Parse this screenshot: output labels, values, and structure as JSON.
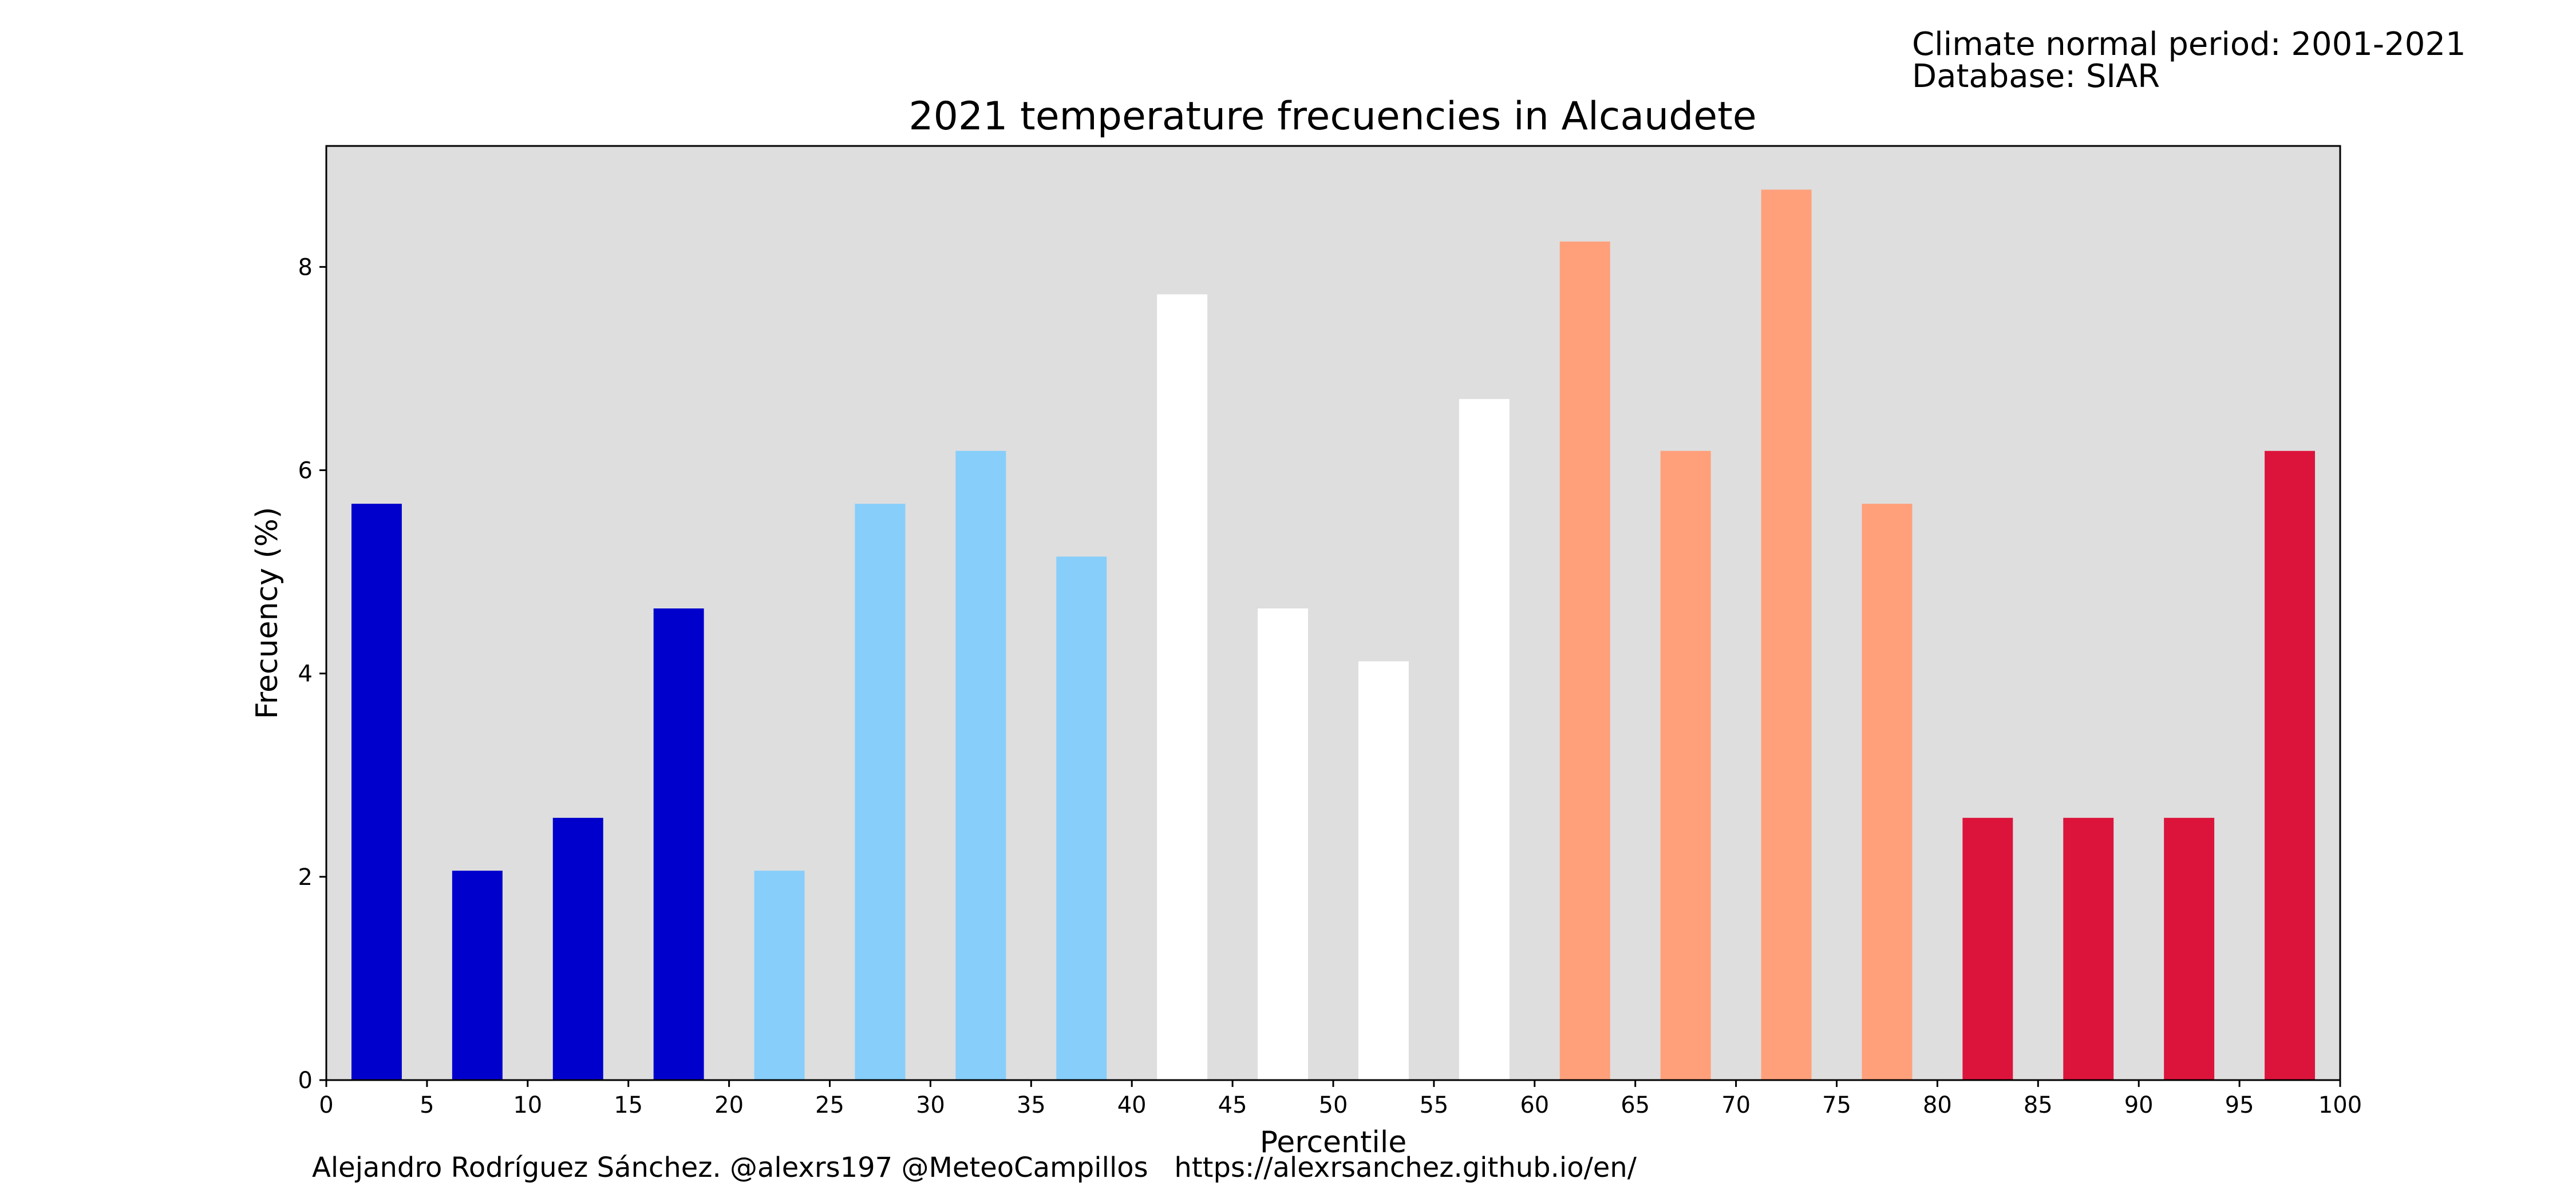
{
  "header": {
    "period_line": "Climate normal period: 2001-2021",
    "database_line": "Database: SIAR"
  },
  "footer": {
    "credit": "Alejandro Rodríguez Sánchez. @alexrs197 @MeteoCampillos   https://alexrsanchez.github.io/en/"
  },
  "chart_data": {
    "type": "bar",
    "title": "2021 temperature frecuencies in Alcaudete",
    "xlabel": "Percentile",
    "ylabel": "Frecuency (%)",
    "x": [
      2.5,
      7.5,
      12.5,
      17.5,
      22.5,
      27.5,
      32.5,
      37.5,
      42.5,
      47.5,
      52.5,
      57.5,
      62.5,
      67.5,
      72.5,
      77.5,
      82.5,
      87.5,
      92.5,
      97.5
    ],
    "values": [
      5.67,
      2.06,
      2.58,
      4.64,
      2.06,
      5.67,
      6.19,
      5.15,
      7.73,
      4.64,
      4.12,
      6.7,
      8.25,
      6.19,
      8.76,
      5.67,
      2.58,
      2.58,
      2.58,
      6.19
    ],
    "colors": [
      "#0000cd",
      "#0000cd",
      "#0000cd",
      "#0000cd",
      "#87cefa",
      "#87cefa",
      "#87cefa",
      "#87cefa",
      "#ffffff",
      "#ffffff",
      "#ffffff",
      "#ffffff",
      "#ffa07a",
      "#ffa07a",
      "#ffa07a",
      "#ffa07a",
      "#dc143c",
      "#dc143c",
      "#dc143c",
      "#dc143c"
    ],
    "xlim": [
      0,
      100
    ],
    "ylim": [
      0,
      9.19
    ],
    "xticks": [
      0,
      5,
      10,
      15,
      20,
      25,
      30,
      35,
      40,
      45,
      50,
      55,
      60,
      65,
      70,
      75,
      80,
      85,
      90,
      95,
      100
    ],
    "yticks": [
      0,
      2,
      4,
      6,
      8
    ],
    "plot_background": "#dedede",
    "grid": false,
    "legend": false
  }
}
